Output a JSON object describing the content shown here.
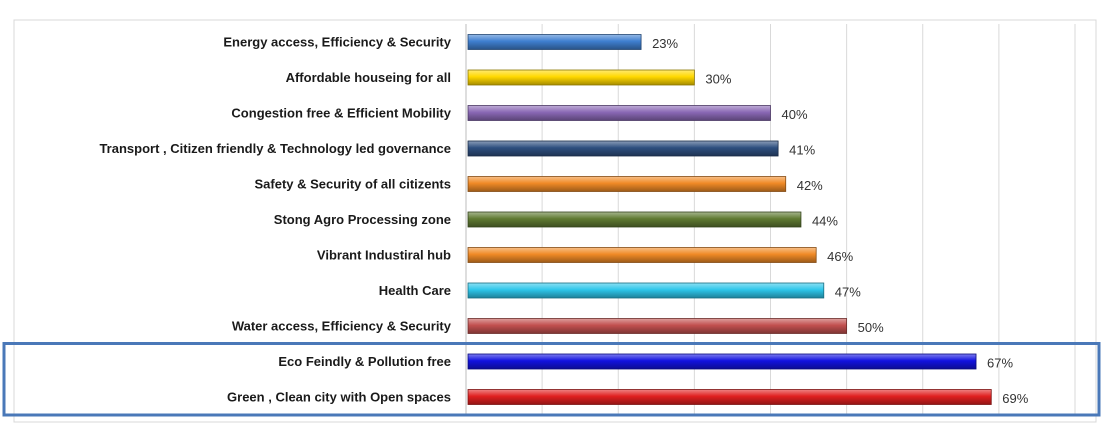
{
  "chart_data": {
    "type": "bar",
    "orientation": "horizontal",
    "categories": [
      "Energy access, Efficiency & Security",
      "Affordable houseing for all",
      "Congestion free & Efficient Mobility",
      "Transport , Citizen friendly & Technology led governance",
      "Safety & Security of all citizents",
      "Stong Agro Processing zone",
      "Vibrant Industiral hub",
      "Health Care",
      "Water access, Efficiency & Security",
      "Eco Feindly & Pollution free",
      "Green , Clean city with Open spaces"
    ],
    "values": [
      23,
      30,
      40,
      41,
      42,
      44,
      46,
      47,
      50,
      67,
      69
    ],
    "value_labels": [
      "23%",
      "30%",
      "40%",
      "41%",
      "42%",
      "44%",
      "46%",
      "47%",
      "50%",
      "67%",
      "69%"
    ],
    "colors": [
      "#3f7fd0",
      "#ffd800",
      "#8a68b5",
      "#2e4f7f",
      "#f08a26",
      "#5f7a32",
      "#f08a26",
      "#2ec6ea",
      "#c2504f",
      "#1212e0",
      "#e02020"
    ],
    "xlim": [
      0,
      80
    ],
    "grid": true,
    "title": "",
    "xlabel": "",
    "ylabel": "",
    "highlight_box": {
      "categories": [
        "Eco Feindly & Pollution free",
        "Green , Clean city with Open spaces"
      ],
      "color": "#4a78b8"
    }
  }
}
